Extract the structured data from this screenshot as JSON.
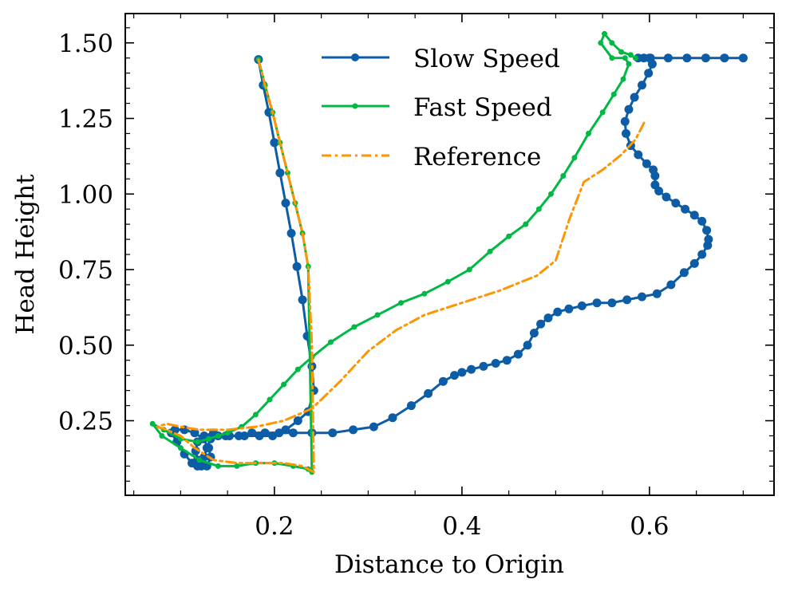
{
  "chart_data": {
    "type": "line",
    "title": "",
    "xlabel": "Distance to Origin",
    "ylabel": "Head Height",
    "xlim": [
      0.04,
      0.73
    ],
    "ylim": [
      0.01,
      1.6
    ],
    "xticks": [
      0.2,
      0.4,
      0.6
    ],
    "xtick_labels": [
      "0.2",
      "0.4",
      "0.6"
    ],
    "yticks": [
      0.25,
      0.5,
      0.75,
      1.0,
      1.25,
      1.5
    ],
    "ytick_labels": [
      "0.25",
      "0.50",
      "0.75",
      "1.00",
      "1.25",
      "1.50"
    ],
    "grid": false,
    "legend_position": "top-center",
    "series": [
      {
        "name": "Slow Speed",
        "color": "#0c5da5",
        "style": "solid-markers",
        "x": [
          0.183,
          0.188,
          0.194,
          0.2,
          0.206,
          0.212,
          0.218,
          0.224,
          0.23,
          0.235,
          0.24,
          0.242,
          0.236,
          0.225,
          0.212,
          0.198,
          0.184,
          0.168,
          0.152,
          0.14,
          0.132,
          0.128,
          0.125,
          0.122,
          0.118,
          0.112,
          0.104,
          0.096,
          0.09,
          0.094,
          0.104,
          0.115,
          0.124,
          0.13,
          0.132,
          0.128,
          0.122,
          0.118,
          0.116,
          0.118,
          0.125,
          0.135,
          0.148,
          0.162,
          0.176,
          0.19,
          0.205,
          0.22,
          0.24,
          0.262,
          0.284,
          0.306,
          0.326,
          0.346,
          0.364,
          0.38,
          0.392,
          0.4,
          0.41,
          0.423,
          0.436,
          0.448,
          0.46,
          0.47,
          0.477,
          0.484,
          0.492,
          0.502,
          0.514,
          0.528,
          0.544,
          0.56,
          0.576,
          0.592,
          0.608,
          0.623,
          0.637,
          0.648,
          0.656,
          0.662,
          0.663,
          0.661,
          0.656,
          0.648,
          0.638,
          0.628,
          0.618,
          0.61,
          0.606,
          0.606,
          0.604,
          0.597,
          0.588,
          0.58,
          0.575,
          0.574,
          0.578,
          0.584,
          0.592,
          0.599,
          0.603,
          0.601,
          0.594,
          0.588,
          0.6,
          0.62,
          0.64,
          0.66,
          0.68,
          0.7
        ],
        "y": [
          1.445,
          1.36,
          1.27,
          1.17,
          1.07,
          0.97,
          0.87,
          0.76,
          0.65,
          0.53,
          0.43,
          0.35,
          0.28,
          0.25,
          0.22,
          0.2,
          0.2,
          0.2,
          0.2,
          0.2,
          0.19,
          0.16,
          0.13,
          0.11,
          0.1,
          0.11,
          0.14,
          0.18,
          0.21,
          0.22,
          0.22,
          0.21,
          0.19,
          0.16,
          0.13,
          0.1,
          0.1,
          0.12,
          0.15,
          0.18,
          0.2,
          0.21,
          0.2,
          0.2,
          0.21,
          0.21,
          0.21,
          0.21,
          0.21,
          0.21,
          0.22,
          0.23,
          0.26,
          0.3,
          0.34,
          0.38,
          0.4,
          0.41,
          0.42,
          0.43,
          0.44,
          0.45,
          0.47,
          0.5,
          0.54,
          0.57,
          0.59,
          0.61,
          0.62,
          0.63,
          0.64,
          0.64,
          0.65,
          0.66,
          0.67,
          0.7,
          0.74,
          0.77,
          0.8,
          0.83,
          0.85,
          0.88,
          0.91,
          0.93,
          0.95,
          0.97,
          0.99,
          1.01,
          1.03,
          1.06,
          1.08,
          1.1,
          1.13,
          1.16,
          1.2,
          1.24,
          1.28,
          1.32,
          1.36,
          1.4,
          1.43,
          1.45,
          1.45,
          1.45,
          1.45,
          1.45,
          1.45,
          1.45,
          1.45,
          1.45
        ]
      },
      {
        "name": "Fast Speed",
        "color": "#00b945",
        "style": "solid-small-markers",
        "x": [
          0.183,
          0.19,
          0.198,
          0.206,
          0.214,
          0.222,
          0.23,
          0.236,
          0.24,
          0.236,
          0.22,
          0.2,
          0.18,
          0.16,
          0.14,
          0.12,
          0.1,
          0.08,
          0.07,
          0.082,
          0.1,
          0.118,
          0.13,
          0.14,
          0.15,
          0.165,
          0.18,
          0.195,
          0.21,
          0.225,
          0.24,
          0.26,
          0.285,
          0.31,
          0.335,
          0.36,
          0.385,
          0.408,
          0.43,
          0.45,
          0.468,
          0.482,
          0.495,
          0.508,
          0.52,
          0.535,
          0.55,
          0.562,
          0.572,
          0.578,
          0.574,
          0.56,
          0.548,
          0.552,
          0.56,
          0.57,
          0.58,
          0.585
        ],
        "y": [
          1.445,
          1.36,
          1.27,
          1.17,
          1.07,
          0.97,
          0.87,
          0.76,
          0.08,
          0.09,
          0.1,
          0.11,
          0.11,
          0.1,
          0.1,
          0.12,
          0.16,
          0.2,
          0.24,
          0.22,
          0.19,
          0.18,
          0.19,
          0.2,
          0.21,
          0.23,
          0.27,
          0.32,
          0.37,
          0.42,
          0.46,
          0.51,
          0.56,
          0.6,
          0.64,
          0.67,
          0.71,
          0.75,
          0.81,
          0.86,
          0.9,
          0.95,
          1.0,
          1.06,
          1.12,
          1.2,
          1.27,
          1.33,
          1.38,
          1.43,
          1.45,
          1.45,
          1.5,
          1.53,
          1.5,
          1.47,
          1.46,
          1.45
        ]
      },
      {
        "name": "Reference",
        "color": "#ff9500",
        "style": "dashdot",
        "x": [
          0.183,
          0.19,
          0.198,
          0.206,
          0.214,
          0.222,
          0.23,
          0.236,
          0.24,
          0.242,
          0.23,
          0.21,
          0.185,
          0.16,
          0.135,
          0.115,
          0.1,
          0.085,
          0.075,
          0.085,
          0.1,
          0.12,
          0.15,
          0.18,
          0.21,
          0.24,
          0.27,
          0.3,
          0.33,
          0.36,
          0.4,
          0.44,
          0.48,
          0.5,
          0.515,
          0.53,
          0.55,
          0.57,
          0.585,
          0.595
        ],
        "y": [
          1.445,
          1.36,
          1.27,
          1.17,
          1.07,
          0.97,
          0.87,
          0.76,
          0.5,
          0.08,
          0.1,
          0.11,
          0.11,
          0.11,
          0.12,
          0.16,
          0.2,
          0.22,
          0.23,
          0.24,
          0.23,
          0.22,
          0.22,
          0.23,
          0.25,
          0.29,
          0.38,
          0.48,
          0.55,
          0.6,
          0.64,
          0.68,
          0.73,
          0.78,
          0.92,
          1.04,
          1.08,
          1.13,
          1.18,
          1.24
        ]
      }
    ]
  }
}
